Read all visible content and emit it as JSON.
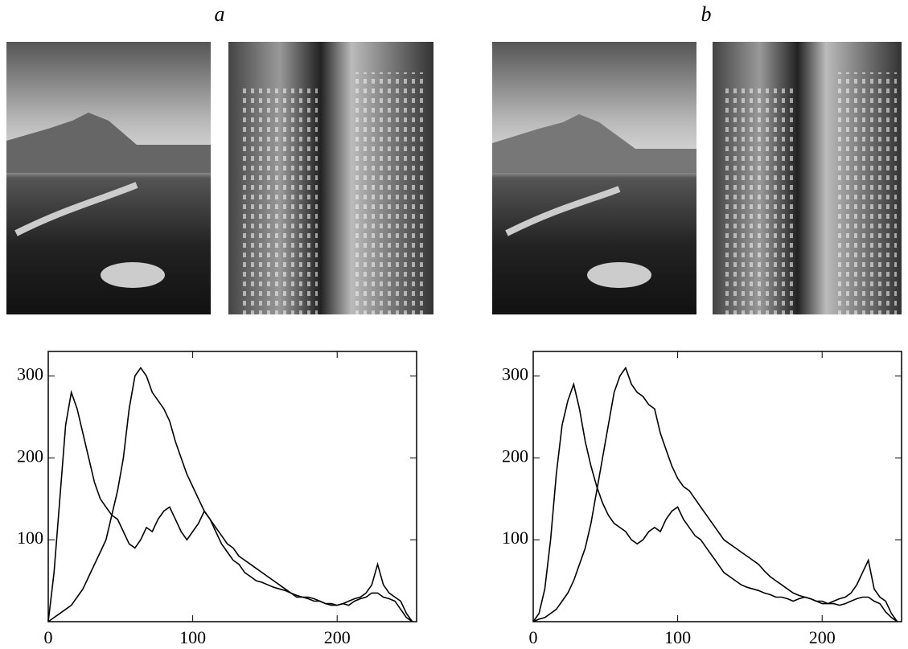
{
  "chart_data": [
    {
      "type": "line",
      "label": "a",
      "x": [
        0,
        4,
        8,
        12,
        16,
        20,
        24,
        28,
        32,
        36,
        40,
        44,
        48,
        52,
        56,
        60,
        64,
        68,
        72,
        76,
        80,
        84,
        88,
        92,
        96,
        100,
        104,
        108,
        112,
        116,
        120,
        124,
        128,
        132,
        136,
        140,
        144,
        148,
        152,
        156,
        160,
        164,
        168,
        172,
        176,
        180,
        184,
        188,
        192,
        196,
        200,
        204,
        208,
        212,
        216,
        220,
        224,
        228,
        232,
        236,
        240,
        244,
        248,
        252
      ],
      "xlim": [
        0,
        255
      ],
      "ylim": [
        0,
        330
      ],
      "xticks": [
        0,
        100,
        200
      ],
      "yticks": [
        100,
        200,
        300
      ],
      "series": [
        {
          "color": "#000000",
          "values": [
            0,
            60,
            150,
            240,
            280,
            260,
            230,
            200,
            170,
            150,
            140,
            130,
            125,
            110,
            95,
            90,
            100,
            115,
            110,
            125,
            135,
            140,
            125,
            110,
            100,
            110,
            120,
            135,
            125,
            110,
            95,
            85,
            75,
            70,
            60,
            55,
            50,
            48,
            45,
            42,
            40,
            38,
            35,
            32,
            30,
            30,
            28,
            25,
            22,
            22,
            20,
            22,
            25,
            28,
            30,
            35,
            45,
            70,
            45,
            35,
            30,
            25,
            10,
            0
          ]
        },
        {
          "color": "#000000",
          "values": [
            0,
            5,
            10,
            15,
            20,
            30,
            40,
            55,
            70,
            85,
            100,
            130,
            160,
            200,
            260,
            300,
            310,
            300,
            280,
            270,
            260,
            245,
            220,
            200,
            180,
            165,
            150,
            135,
            125,
            115,
            105,
            95,
            90,
            80,
            75,
            70,
            65,
            60,
            55,
            50,
            45,
            40,
            35,
            30,
            30,
            28,
            25,
            25,
            22,
            20,
            20,
            22,
            20,
            25,
            28,
            30,
            35,
            35,
            30,
            28,
            25,
            15,
            5,
            0
          ]
        }
      ]
    },
    {
      "type": "line",
      "label": "b",
      "x": [
        0,
        4,
        8,
        12,
        16,
        20,
        24,
        28,
        32,
        36,
        40,
        44,
        48,
        52,
        56,
        60,
        64,
        68,
        72,
        76,
        80,
        84,
        88,
        92,
        96,
        100,
        104,
        108,
        112,
        116,
        120,
        124,
        128,
        132,
        136,
        140,
        144,
        148,
        152,
        156,
        160,
        164,
        168,
        172,
        176,
        180,
        184,
        188,
        192,
        196,
        200,
        204,
        208,
        212,
        216,
        220,
        224,
        228,
        232,
        236,
        240,
        244,
        248,
        252
      ],
      "xlim": [
        0,
        255
      ],
      "ylim": [
        0,
        330
      ],
      "xticks": [
        0,
        100,
        200
      ],
      "yticks": [
        100,
        200,
        300
      ],
      "series": [
        {
          "color": "#000000",
          "values": [
            0,
            10,
            40,
            100,
            180,
            240,
            270,
            290,
            260,
            220,
            190,
            165,
            145,
            130,
            120,
            115,
            110,
            100,
            95,
            100,
            110,
            115,
            110,
            125,
            135,
            140,
            125,
            115,
            105,
            100,
            90,
            80,
            70,
            60,
            55,
            50,
            45,
            42,
            40,
            38,
            35,
            33,
            30,
            30,
            28,
            25,
            28,
            30,
            28,
            25,
            22,
            22,
            25,
            28,
            30,
            35,
            45,
            60,
            75,
            40,
            30,
            25,
            10,
            0
          ]
        },
        {
          "color": "#000000",
          "values": [
            0,
            3,
            5,
            10,
            15,
            25,
            35,
            50,
            70,
            90,
            120,
            160,
            200,
            240,
            280,
            300,
            310,
            290,
            280,
            275,
            265,
            260,
            230,
            210,
            190,
            175,
            165,
            160,
            150,
            140,
            130,
            120,
            110,
            100,
            95,
            90,
            85,
            80,
            75,
            70,
            62,
            55,
            50,
            45,
            40,
            35,
            32,
            30,
            28,
            25,
            25,
            22,
            22,
            20,
            22,
            25,
            28,
            30,
            30,
            25,
            22,
            12,
            5,
            0
          ]
        }
      ]
    }
  ]
}
